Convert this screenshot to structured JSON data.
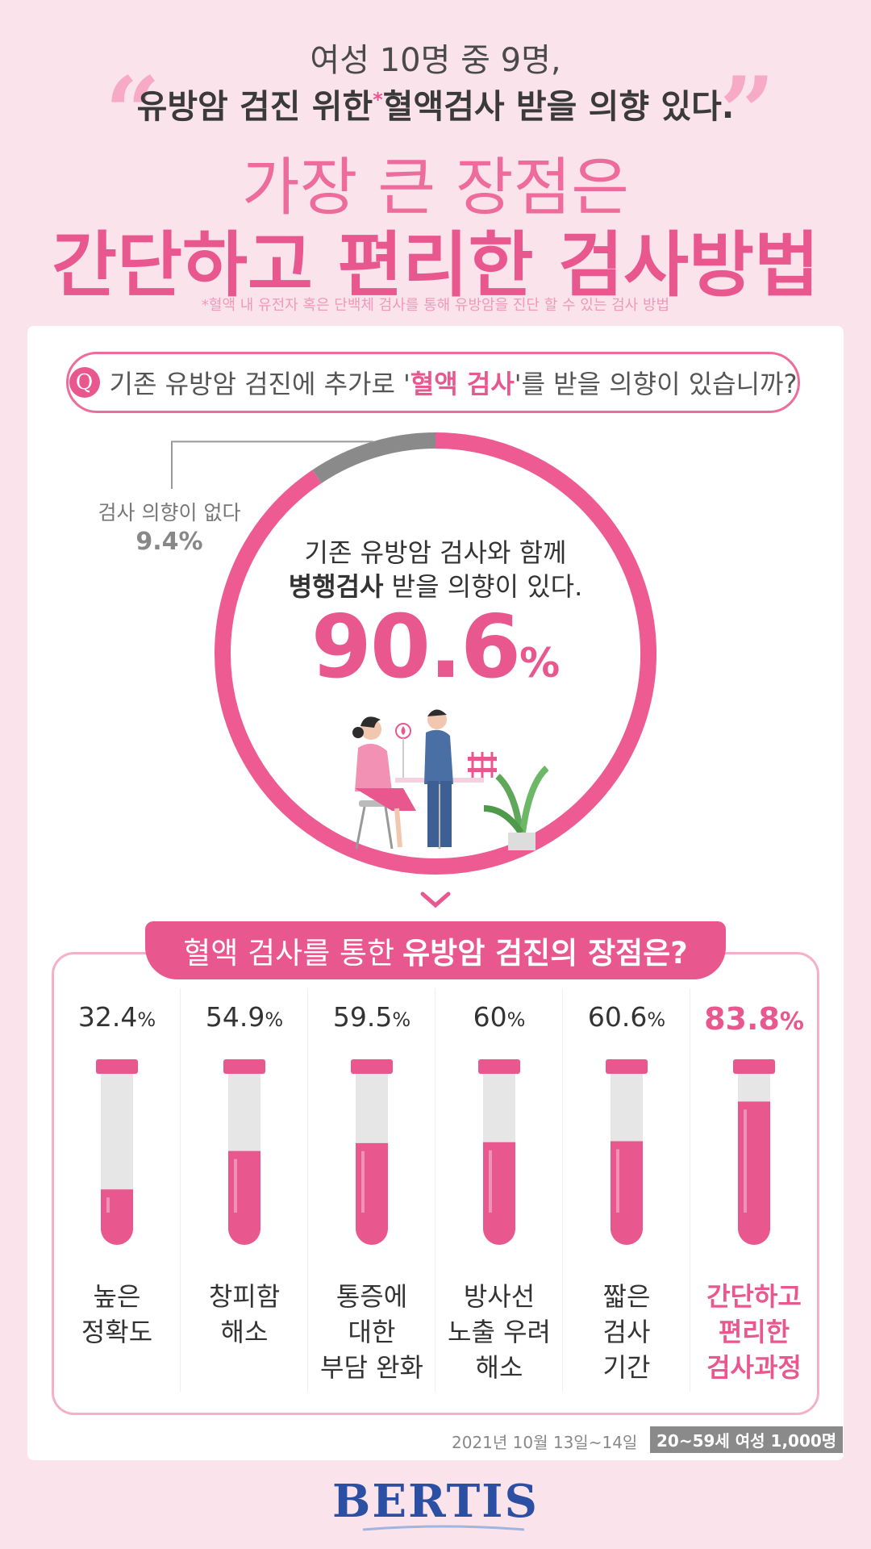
{
  "header": {
    "line1": "여성 10명 중 9명,",
    "line2a": "유방암 검진 위한",
    "asterisk": "*",
    "line2b": "혈액검사 받을 의향 있다.",
    "line3": "가장 큰 장점은",
    "line4": "간단하고 편리한 검사방법",
    "footnote": "*혈액 내 유전자 혹은 단백체 검사를 통해 유방암을 진단 할 수 있는 검사 방법"
  },
  "question": {
    "icon": "Q",
    "pre": "기존 유방암 검진에 추가로 '",
    "bold": "혈액 검사",
    "post": "'를 받을 의향이 있습니까?"
  },
  "donut": {
    "no_label": "검사 의향이 없다",
    "no_value": "9.4%",
    "yes_line1": "기존 유방암 검사와 함께",
    "yes_bold": "병행검사",
    "yes_line2": " 받을 의향이 있다.",
    "yes_number": "90.6",
    "yes_unit": "%"
  },
  "advantages": {
    "title_plain": "혈액 검사를 통한",
    "title_bold": "유방암 검진의 장점은?"
  },
  "chart_data": [
    {
      "type": "pie",
      "labels": [
        "기존 유방암 검사와 함께 병행검사 받을 의향이 있다.",
        "검사 의향이 없다"
      ],
      "values": [
        90.6,
        9.4
      ],
      "colors": [
        "#ee5b93",
        "#8a8a8a"
      ]
    },
    {
      "type": "bar",
      "categories": [
        "높은 정확도",
        "창피함 해소",
        "통증에 대한 부담 완화",
        "방사선 노출 우려 해소",
        "짧은 검사 기간",
        "간단하고 편리한 검사과정"
      ],
      "label_lines": [
        [
          "높은",
          "정확도"
        ],
        [
          "창피함",
          "해소"
        ],
        [
          "통증에",
          "대한",
          "부담 완화"
        ],
        [
          "방사선",
          "노출 우려",
          "해소"
        ],
        [
          "짧은",
          "검사",
          "기간"
        ],
        [
          "간단하고",
          "편리한",
          "검사과정"
        ]
      ],
      "values": [
        32.4,
        54.9,
        59.5,
        60,
        60.6,
        83.8
      ],
      "value_labels": [
        "32.4",
        "54.9",
        "59.5",
        "60",
        "60.6",
        "83.8"
      ],
      "unit": "%",
      "ylim": [
        0,
        100
      ],
      "highlight_index": 5
    }
  ],
  "footer": {
    "date": "2021년 10월 13일~14일",
    "sample": "20~59세 여성 1,000명",
    "logo": "BERTIS"
  },
  "colors": {
    "accent": "#e8588f",
    "pink_bg": "#fbe3ec",
    "gray": "#8a8a8a"
  }
}
